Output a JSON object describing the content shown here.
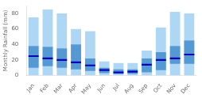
{
  "chart_data": {
    "type": "range_bar",
    "ylabel": "Monthly Rainfall (mm)",
    "categories": [
      "Jan",
      "Feb",
      "Mar",
      "Apr",
      "May",
      "Jun",
      "Jul",
      "Aug",
      "Sep",
      "Oct",
      "Nov",
      "Dec"
    ],
    "series": [
      {
        "type": "bar",
        "color": "#aed6f5",
        "low": [
          0,
          0,
          0,
          0,
          0,
          0,
          0,
          0,
          0,
          0,
          0,
          0
        ],
        "high": [
          75,
          85,
          80,
          60,
          57,
          18,
          16,
          16,
          32,
          62,
          82,
          80
        ]
      },
      {
        "type": "bar",
        "color": "#5499d4",
        "low": [
          10,
          12,
          10,
          8,
          6,
          3,
          2,
          2,
          4,
          7,
          15,
          15
        ],
        "high": [
          38,
          37,
          35,
          40,
          22,
          10,
          8,
          8,
          22,
          30,
          38,
          45
        ]
      },
      {
        "type": "scatter",
        "marker": "line",
        "color": "#0000bb",
        "values": [
          25,
          22,
          20,
          17,
          13,
          7,
          4,
          5,
          14,
          20,
          22,
          27
        ]
      }
    ],
    "ylim": [
      0,
      90
    ],
    "yticks": [
      0,
      20,
      40,
      60,
      80
    ],
    "grid": false
  }
}
